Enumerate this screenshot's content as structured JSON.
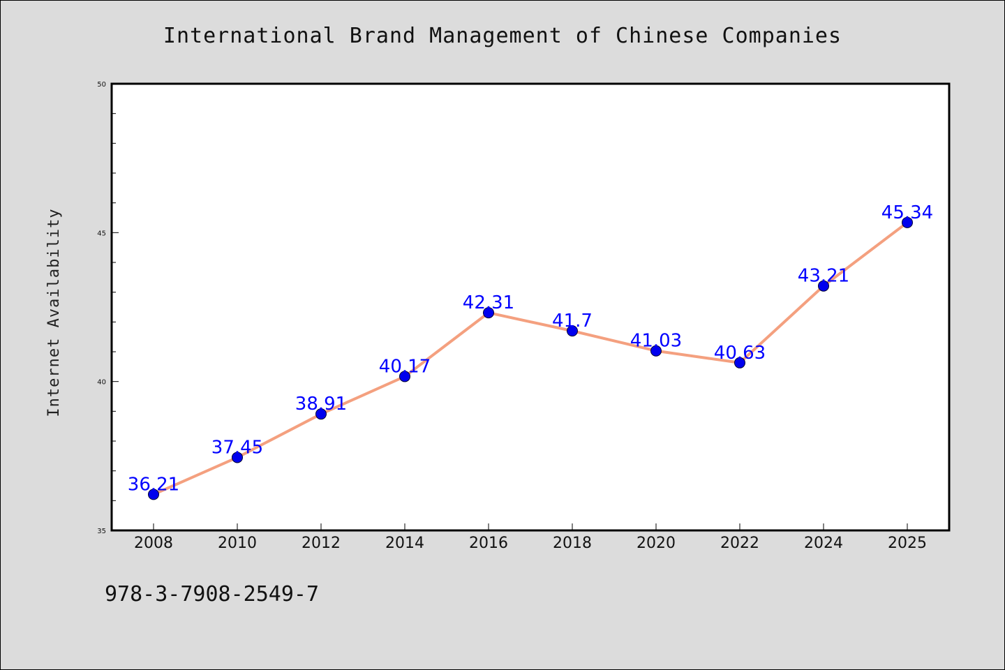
{
  "isbn_text": "978-3-7908-2549-7",
  "colors": {
    "background": "#dcdcdc",
    "plot_background": "#ffffff",
    "line": "#f4a07f",
    "marker": "#0000ee",
    "data_label": "#0000ff"
  },
  "chart_data": {
    "type": "line",
    "title": "International Brand Management of Chinese Companies",
    "xlabel": "",
    "ylabel": "Internet Availability",
    "categories": [
      "2008",
      "2010",
      "2012",
      "2014",
      "2016",
      "2018",
      "2020",
      "2022",
      "2024",
      "2025"
    ],
    "series": [
      {
        "values": [
          36.21,
          37.45,
          38.91,
          40.17,
          42.31,
          41.7,
          41.03,
          40.63,
          43.21,
          45.34
        ],
        "labels": [
          "36.21",
          "37.45",
          "38.91",
          "40.17",
          "42.31",
          "41.7",
          "41.03",
          "40.63",
          "43.21",
          "45.34"
        ]
      }
    ],
    "ylim": [
      35,
      50
    ],
    "yticks": [
      35,
      40,
      45,
      50
    ],
    "y_minor_step": 1,
    "grid": false,
    "legend": "none"
  }
}
